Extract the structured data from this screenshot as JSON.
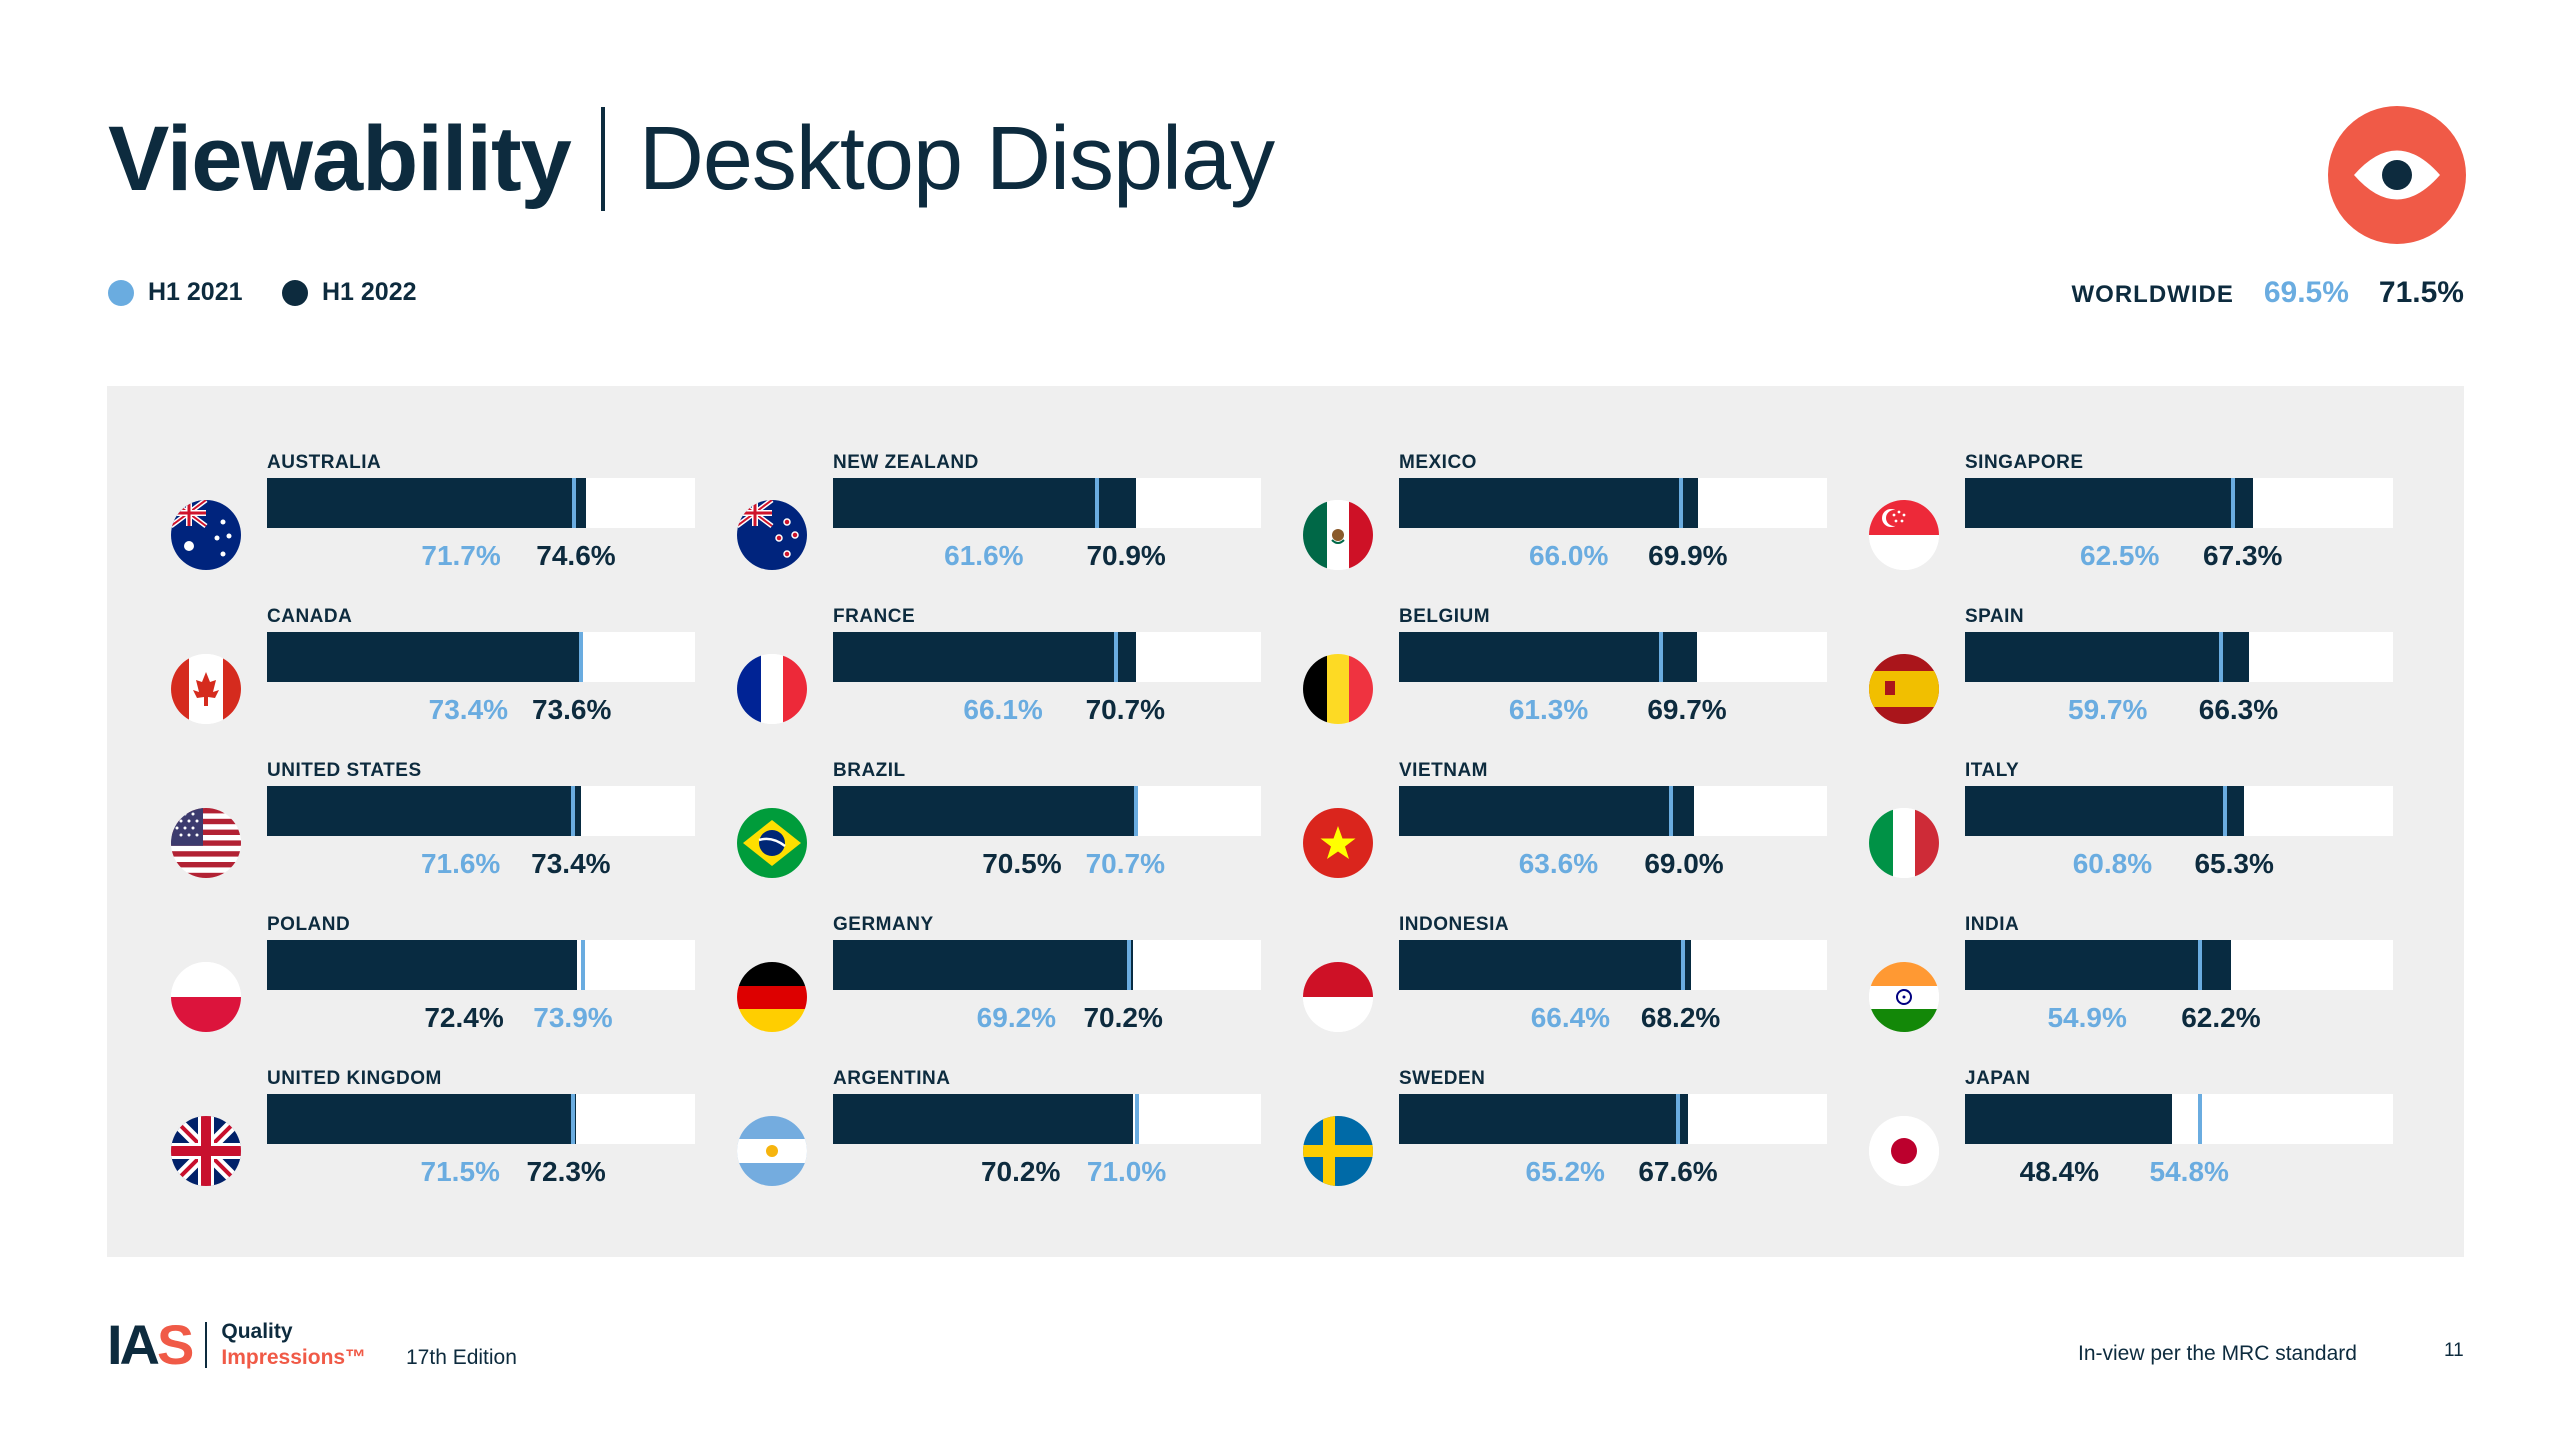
{
  "header": {
    "title_bold": "Viewability",
    "title_light": "Desktop Display"
  },
  "legend": [
    {
      "label": "H1 2021",
      "color": "#6aace0"
    },
    {
      "label": "H1 2022",
      "color": "#0d2b3e"
    }
  ],
  "worldwide": {
    "label": "WORLDWIDE",
    "h1_2021": "69.5%",
    "h1_2022": "71.5%"
  },
  "colors": {
    "h1_2021": "#6aace0",
    "h1_2022": "#082b41",
    "accent": "#f05a47",
    "panel": "#efefef"
  },
  "chart_data": {
    "type": "bar",
    "series": [
      {
        "name": "H1 2021"
      },
      {
        "name": "H1 2022"
      }
    ],
    "unit": "%",
    "ylim": [
      0,
      100
    ],
    "categories": [
      {
        "name": "AUSTRALIA",
        "flag": "australia-flag-icon",
        "h1_2021": 71.7,
        "h1_2022": 74.6,
        "label_2021": "71.7%",
        "label_2022": "74.6%"
      },
      {
        "name": "CANADA",
        "flag": "canada-flag-icon",
        "h1_2021": 73.4,
        "h1_2022": 73.6,
        "label_2021": "73.4%",
        "label_2022": "73.6%"
      },
      {
        "name": "UNITED STATES",
        "flag": "united-states-flag-icon",
        "h1_2021": 71.6,
        "h1_2022": 73.4,
        "label_2021": "71.6%",
        "label_2022": "73.4%"
      },
      {
        "name": "POLAND",
        "flag": "poland-flag-icon",
        "h1_2021": 73.9,
        "h1_2022": 72.4,
        "label_2021": "73.9%",
        "label_2022": "72.4%"
      },
      {
        "name": "UNITED KINGDOM",
        "flag": "united-kingdom-flag-icon",
        "h1_2021": 71.5,
        "h1_2022": 72.3,
        "label_2021": "71.5%",
        "label_2022": "72.3%"
      },
      {
        "name": "NEW ZEALAND",
        "flag": "new-zealand-flag-icon",
        "h1_2021": 61.6,
        "h1_2022": 70.9,
        "label_2021": "61.6%",
        "label_2022": "70.9%"
      },
      {
        "name": "FRANCE",
        "flag": "france-flag-icon",
        "h1_2021": 66.1,
        "h1_2022": 70.7,
        "label_2021": "66.1%",
        "label_2022": "70.7%"
      },
      {
        "name": "BRAZIL",
        "flag": "brazil-flag-icon",
        "h1_2021": 70.7,
        "h1_2022": 70.5,
        "label_2021": "70.7%",
        "label_2022": "70.5%"
      },
      {
        "name": "GERMANY",
        "flag": "germany-flag-icon",
        "h1_2021": 69.2,
        "h1_2022": 70.2,
        "label_2021": "69.2%",
        "label_2022": "70.2%"
      },
      {
        "name": "ARGENTINA",
        "flag": "argentina-flag-icon",
        "h1_2021": 71.0,
        "h1_2022": 70.2,
        "label_2021": "71.0%",
        "label_2022": "70.2%"
      },
      {
        "name": "MEXICO",
        "flag": "mexico-flag-icon",
        "h1_2021": 66.0,
        "h1_2022": 69.9,
        "label_2021": "66.0%",
        "label_2022": "69.9%"
      },
      {
        "name": "BELGIUM",
        "flag": "belgium-flag-icon",
        "h1_2021": 61.3,
        "h1_2022": 69.7,
        "label_2021": "61.3%",
        "label_2022": "69.7%"
      },
      {
        "name": "VIETNAM",
        "flag": "vietnam-flag-icon",
        "h1_2021": 63.6,
        "h1_2022": 69.0,
        "label_2021": "63.6%",
        "label_2022": "69.0%"
      },
      {
        "name": "INDONESIA",
        "flag": "indonesia-flag-icon",
        "h1_2021": 66.4,
        "h1_2022": 68.2,
        "label_2021": "66.4%",
        "label_2022": "68.2%"
      },
      {
        "name": "SWEDEN",
        "flag": "sweden-flag-icon",
        "h1_2021": 65.2,
        "h1_2022": 67.6,
        "label_2021": "65.2%",
        "label_2022": "67.6%"
      },
      {
        "name": "SINGAPORE",
        "flag": "singapore-flag-icon",
        "h1_2021": 62.5,
        "h1_2022": 67.3,
        "label_2021": "62.5%",
        "label_2022": "67.3%"
      },
      {
        "name": "SPAIN",
        "flag": "spain-flag-icon",
        "h1_2021": 59.7,
        "h1_2022": 66.3,
        "label_2021": "59.7%",
        "label_2022": "66.3%"
      },
      {
        "name": "ITALY",
        "flag": "italy-flag-icon",
        "h1_2021": 60.8,
        "h1_2022": 65.3,
        "label_2021": "60.8%",
        "label_2022": "65.3%"
      },
      {
        "name": "INDIA",
        "flag": "india-flag-icon",
        "h1_2021": 54.9,
        "h1_2022": 62.2,
        "label_2021": "54.9%",
        "label_2022": "62.2%"
      },
      {
        "name": "JAPAN",
        "flag": "japan-flag-icon",
        "h1_2021": 54.8,
        "h1_2022": 48.4,
        "label_2021": "54.8%",
        "label_2022": "48.4%"
      }
    ]
  },
  "footer": {
    "logo": "IAS",
    "product_line1": "Quality",
    "product_line2": "Impressions™",
    "edition": "17th Edition",
    "note": "In-view per the MRC standard",
    "page_number": "11"
  }
}
